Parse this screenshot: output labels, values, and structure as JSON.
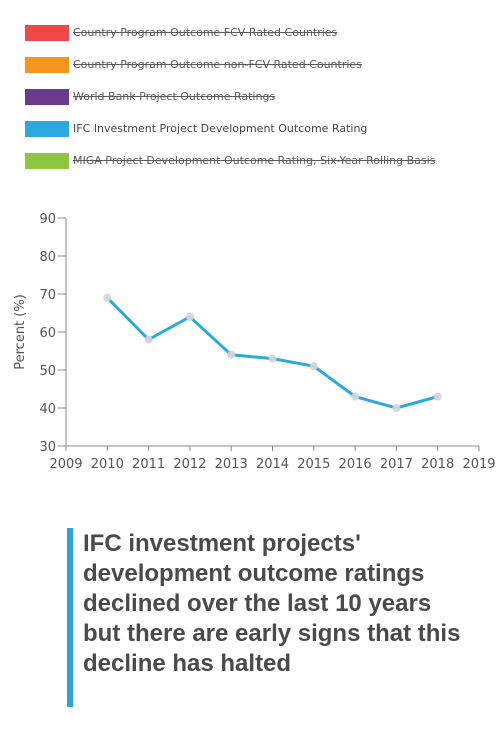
{
  "legend": {
    "items": [
      {
        "label": "Country Program Outcome FCV Rated Countries",
        "color": "#f04848",
        "active": false
      },
      {
        "label": "Country Program Outcome non-FCV Rated Countries",
        "color": "#f7941d",
        "active": false
      },
      {
        "label": "World Bank Project Outcome Ratings",
        "color": "#6b3a8f",
        "active": false
      },
      {
        "label": "IFC Investment Project Development Outcome Rating",
        "color": "#2ba8e0",
        "active": true
      },
      {
        "label": "MIGA Project Development Outcome Rating, Six-Year Rolling Basis",
        "color": "#8dc63f",
        "active": false
      }
    ]
  },
  "chart_data": {
    "type": "line",
    "ylabel": "Percent (%)",
    "xlabel": "",
    "xlim": [
      2009,
      2019
    ],
    "ylim": [
      30,
      90
    ],
    "x_ticks": [
      "2009",
      "2010",
      "2011",
      "2012",
      "2013",
      "2014",
      "2015",
      "2016",
      "2017",
      "2018",
      "2019"
    ],
    "y_ticks": [
      "30",
      "40",
      "50",
      "60",
      "70",
      "80",
      "90"
    ],
    "grid": false,
    "series": [
      {
        "name": "IFC Investment Project Development Outcome Rating",
        "color": "#2ba8e0",
        "x": [
          2010,
          2011,
          2012,
          2013,
          2014,
          2015,
          2016,
          2017,
          2018
        ],
        "values": [
          69,
          58,
          64,
          54,
          53,
          51,
          43,
          40,
          43
        ]
      }
    ]
  },
  "caption": {
    "text": "IFC investment projects' development outcome ratings declined over the last 10 years but there are early signs that this decline has halted",
    "accent_color": "#2aa4dc"
  }
}
